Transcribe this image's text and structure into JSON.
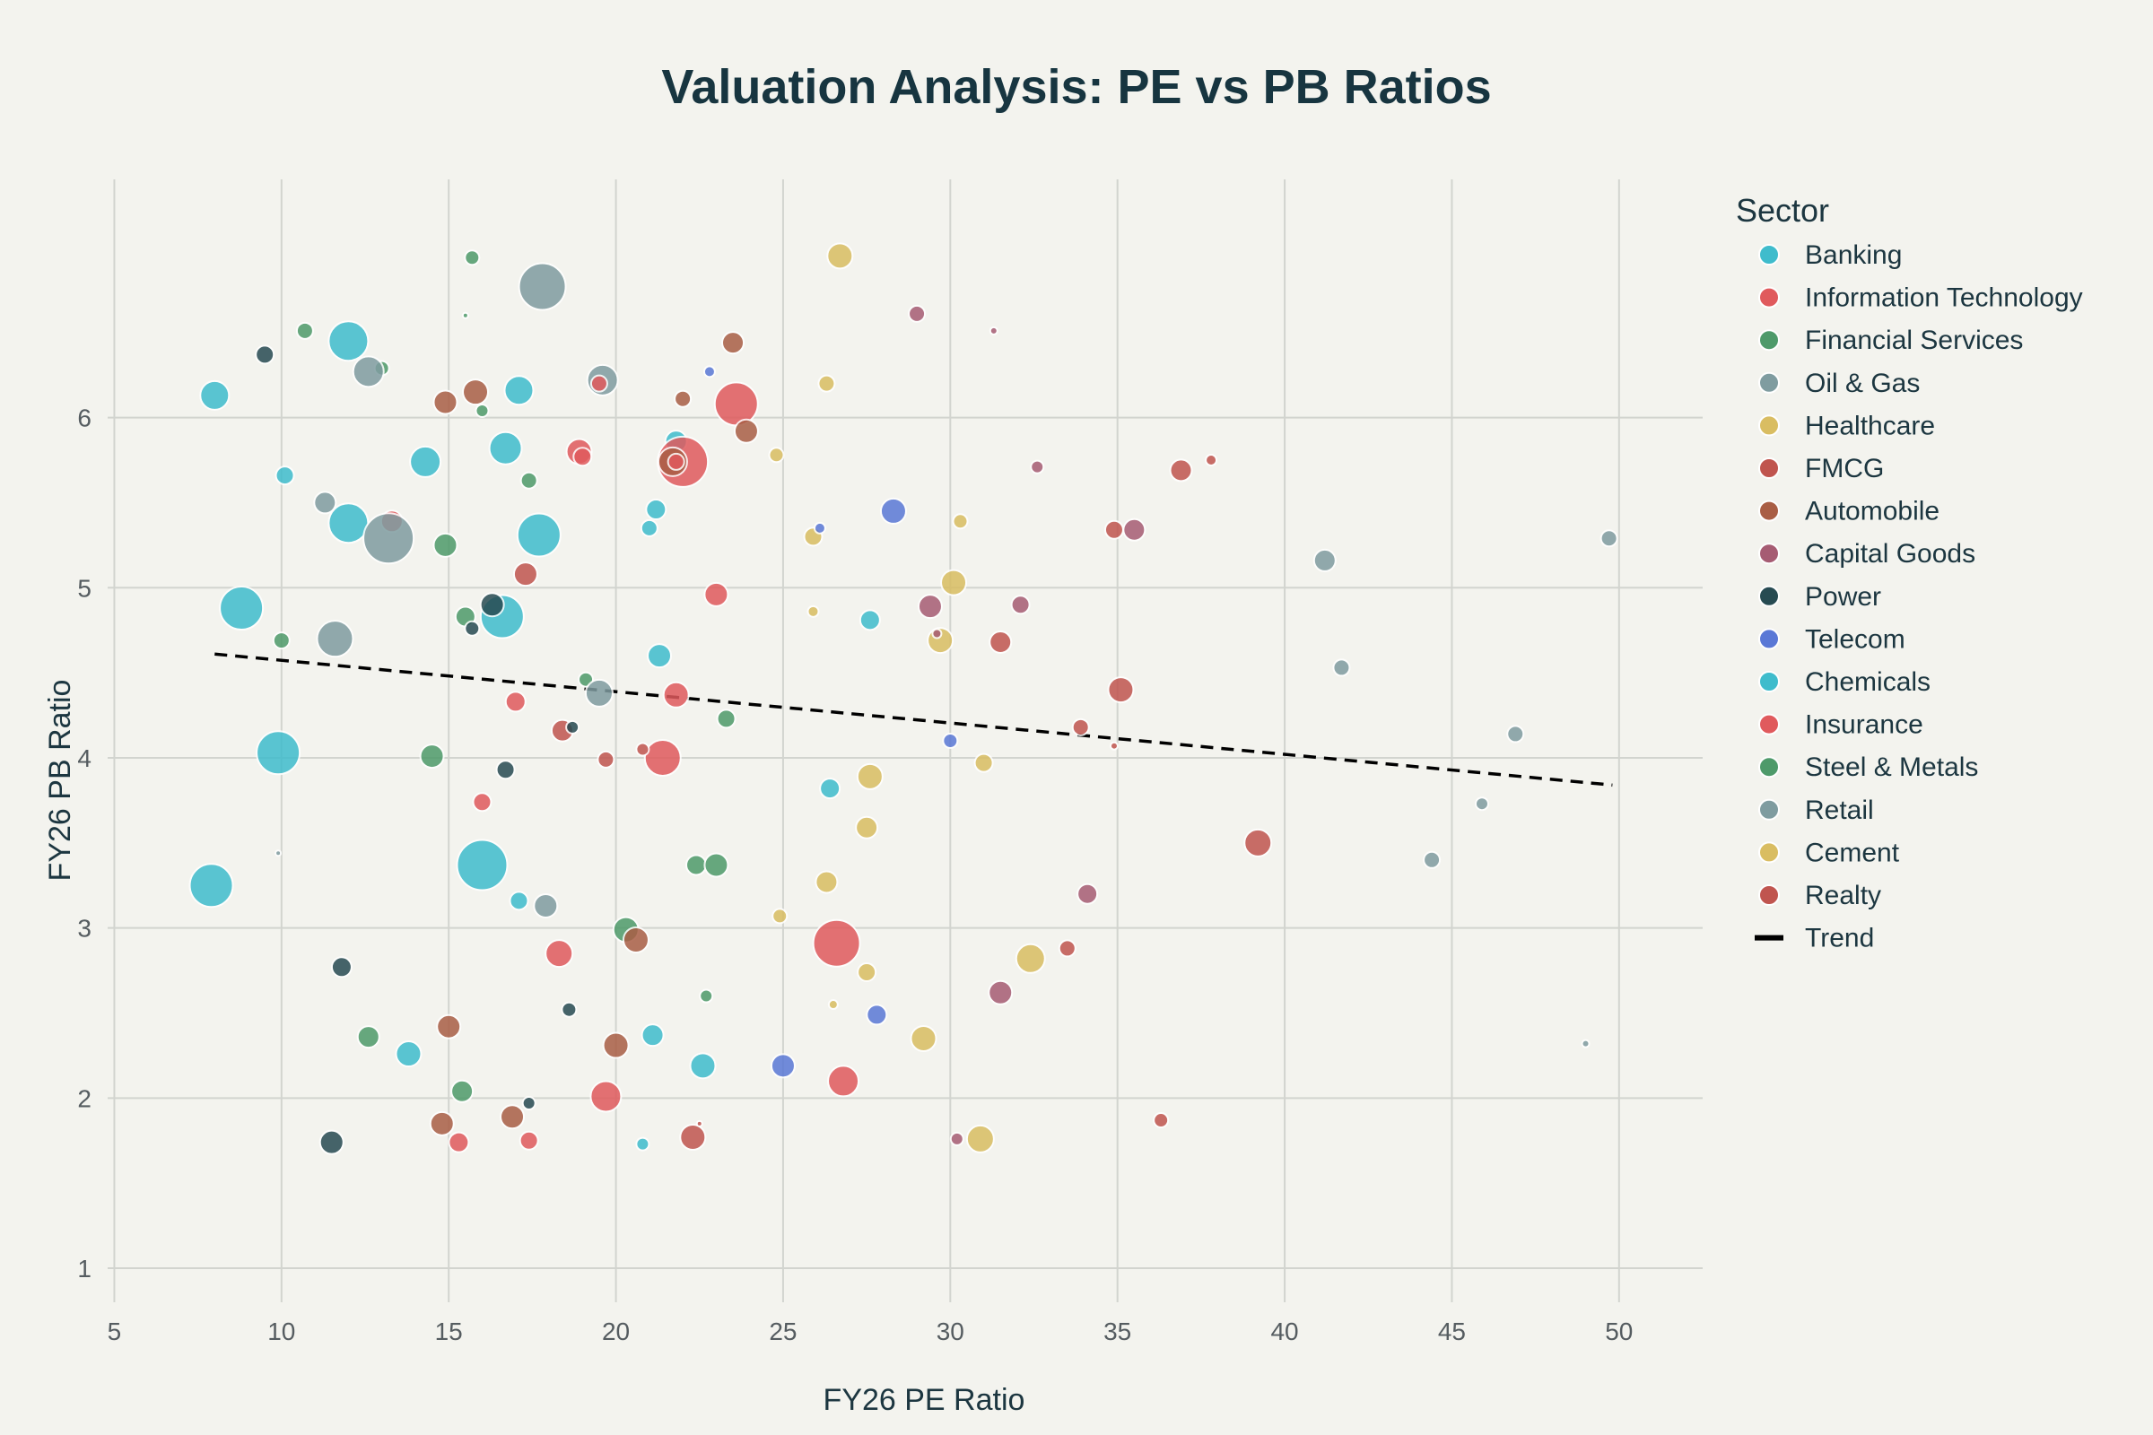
{
  "chart_data": {
    "type": "scatter",
    "title": "Valuation Analysis: PE vs PB Ratios",
    "xlabel": "FY26 PE Ratio",
    "ylabel": "FY26 PB Ratio",
    "xlim": [
      4.8,
      52.5
    ],
    "ylim": [
      0.8,
      7.4
    ],
    "xticks": [
      5,
      10,
      15,
      20,
      25,
      30,
      35,
      40,
      45,
      50
    ],
    "yticks": [
      1,
      2,
      3,
      4,
      5,
      6
    ],
    "grid": true,
    "legend": {
      "title": "Sector",
      "position": "right",
      "trend_label": "Trend"
    },
    "trend": {
      "x": [
        8,
        49.8
      ],
      "y": [
        4.61,
        3.84
      ],
      "color": "#000000",
      "style": "dashed"
    },
    "series": [
      {
        "name": "Banking",
        "color": "#3fbccc",
        "points": [
          [
            8.0,
            6.13,
            16
          ],
          [
            10.1,
            5.66,
            10
          ],
          [
            12.0,
            6.45,
            22
          ],
          [
            12.0,
            5.38,
            22
          ],
          [
            14.3,
            5.74,
            17
          ],
          [
            16.7,
            5.82,
            18
          ],
          [
            17.1,
            6.16,
            16
          ],
          [
            17.7,
            5.31,
            24
          ],
          [
            16.6,
            4.83,
            24
          ],
          [
            8.8,
            4.88,
            24
          ],
          [
            9.9,
            4.03,
            24
          ],
          [
            7.9,
            3.25,
            24
          ],
          [
            16.0,
            3.37,
            28
          ],
          [
            21.0,
            5.35,
            9
          ],
          [
            21.2,
            5.46,
            11
          ],
          [
            21.3,
            4.6,
            13
          ],
          [
            21.8,
            5.86,
            12
          ],
          [
            27.6,
            4.81,
            11
          ],
          [
            26.4,
            3.82,
            11
          ],
          [
            22.6,
            2.19,
            14
          ],
          [
            21.1,
            2.37,
            12
          ],
          [
            17.1,
            3.16,
            10
          ],
          [
            13.8,
            2.26,
            14
          ],
          [
            20.8,
            1.73,
            7
          ]
        ]
      },
      {
        "name": "Information Technology",
        "color": "#e05a5d",
        "points": [
          [
            18.9,
            5.8,
            14
          ],
          [
            22.0,
            5.74,
            28
          ],
          [
            23.6,
            6.08,
            24
          ],
          [
            23.0,
            4.96,
            13
          ],
          [
            21.8,
            4.37,
            14
          ],
          [
            21.4,
            4.0,
            20
          ],
          [
            26.6,
            2.91,
            26
          ],
          [
            26.8,
            2.1,
            17
          ],
          [
            19.7,
            2.01,
            17
          ],
          [
            18.3,
            2.85,
            15
          ],
          [
            16.0,
            3.74,
            10
          ],
          [
            17.0,
            4.33,
            11
          ],
          [
            15.3,
            1.74,
            11
          ],
          [
            17.4,
            1.75,
            10
          ],
          [
            13.3,
            5.39,
            12
          ]
        ]
      },
      {
        "name": "Financial Services",
        "color": "#4e9a6a",
        "points": [
          [
            15.7,
            6.94,
            8
          ],
          [
            10.7,
            6.51,
            9
          ],
          [
            13.0,
            6.29,
            8
          ],
          [
            16.0,
            6.04,
            7
          ],
          [
            17.4,
            5.63,
            9
          ],
          [
            14.9,
            5.25,
            13
          ],
          [
            15.5,
            4.83,
            11
          ],
          [
            10.0,
            4.69,
            9
          ],
          [
            19.1,
            4.46,
            8
          ],
          [
            23.3,
            4.23,
            10
          ],
          [
            14.5,
            4.01,
            13
          ],
          [
            20.3,
            2.99,
            14
          ],
          [
            22.4,
            3.37,
            11
          ],
          [
            23.0,
            3.37,
            13
          ],
          [
            22.7,
            2.6,
            7
          ],
          [
            12.6,
            2.36,
            12
          ],
          [
            15.4,
            2.04,
            12
          ],
          [
            15.5,
            6.6,
            3
          ]
        ]
      },
      {
        "name": "Oil & Gas",
        "color": "#7f9ca0",
        "points": [
          [
            17.8,
            6.77,
            26
          ],
          [
            12.6,
            6.27,
            17
          ],
          [
            19.6,
            6.22,
            17
          ],
          [
            11.3,
            5.5,
            12
          ],
          [
            13.2,
            5.29,
            28
          ],
          [
            11.6,
            4.7,
            20
          ],
          [
            19.5,
            4.38,
            15
          ],
          [
            17.9,
            3.13,
            13
          ],
          [
            41.2,
            5.16,
            12
          ],
          [
            41.7,
            4.53,
            9
          ],
          [
            46.9,
            4.14,
            9
          ],
          [
            45.9,
            3.73,
            7
          ],
          [
            44.4,
            3.4,
            9
          ],
          [
            49.7,
            5.29,
            9
          ],
          [
            49.0,
            2.32,
            4
          ],
          [
            9.9,
            3.44,
            3
          ]
        ]
      },
      {
        "name": "Healthcare",
        "color": "#d9bd62",
        "points": [
          [
            26.7,
            6.95,
            14
          ],
          [
            26.3,
            6.2,
            9
          ],
          [
            24.8,
            5.78,
            8
          ],
          [
            25.9,
            5.3,
            10
          ],
          [
            30.3,
            5.39,
            8
          ],
          [
            30.1,
            5.03,
            14
          ],
          [
            29.7,
            4.69,
            14
          ],
          [
            25.9,
            4.86,
            6
          ],
          [
            31.0,
            3.97,
            10
          ],
          [
            27.6,
            3.89,
            14
          ],
          [
            27.5,
            3.59,
            12
          ],
          [
            26.3,
            3.27,
            12
          ],
          [
            24.9,
            3.07,
            8
          ],
          [
            27.5,
            2.74,
            10
          ],
          [
            32.4,
            2.82,
            16
          ],
          [
            29.2,
            2.35,
            14
          ],
          [
            30.9,
            1.76,
            15
          ],
          [
            26.5,
            2.55,
            5
          ]
        ]
      },
      {
        "name": "FMCG",
        "color": "#c0554f",
        "points": [
          [
            36.9,
            5.69,
            12
          ],
          [
            37.8,
            5.75,
            6
          ],
          [
            34.9,
            5.34,
            10
          ],
          [
            31.5,
            4.68,
            12
          ],
          [
            35.1,
            4.4,
            14
          ],
          [
            33.9,
            4.18,
            9
          ],
          [
            39.2,
            3.5,
            15
          ],
          [
            33.5,
            2.88,
            9
          ],
          [
            36.3,
            1.87,
            8
          ],
          [
            22.3,
            1.77,
            14
          ],
          [
            34.9,
            4.07,
            4
          ],
          [
            19.7,
            3.99,
            9
          ],
          [
            20.8,
            4.05,
            7
          ],
          [
            18.4,
            4.16,
            12
          ],
          [
            17.3,
            5.08,
            13
          ]
        ]
      },
      {
        "name": "Automobile",
        "color": "#a95e45",
        "points": [
          [
            15.8,
            6.15,
            14
          ],
          [
            14.9,
            6.09,
            13
          ],
          [
            23.5,
            6.44,
            12
          ],
          [
            22.0,
            6.11,
            9
          ],
          [
            23.9,
            5.92,
            13
          ],
          [
            21.7,
            5.74,
            16
          ],
          [
            20.6,
            2.93,
            14
          ],
          [
            20.0,
            2.31,
            14
          ],
          [
            15.0,
            2.42,
            13
          ],
          [
            14.8,
            1.85,
            13
          ],
          [
            16.9,
            1.89,
            13
          ]
        ]
      },
      {
        "name": "Capital Goods",
        "color": "#a65c73",
        "points": [
          [
            29.0,
            6.61,
            9
          ],
          [
            31.3,
            6.51,
            4
          ],
          [
            32.6,
            5.71,
            7
          ],
          [
            35.5,
            5.34,
            12
          ],
          [
            29.4,
            4.89,
            13
          ],
          [
            32.1,
            4.9,
            10
          ],
          [
            34.1,
            3.2,
            11
          ],
          [
            31.5,
            2.62,
            13
          ],
          [
            30.2,
            1.76,
            7
          ],
          [
            29.6,
            4.73,
            5
          ]
        ]
      },
      {
        "name": "Power",
        "color": "#274b52",
        "points": [
          [
            9.5,
            6.37,
            10
          ],
          [
            16.3,
            4.9,
            13
          ],
          [
            15.7,
            4.76,
            8
          ],
          [
            18.7,
            4.18,
            7
          ],
          [
            16.7,
            3.93,
            10
          ],
          [
            11.8,
            2.77,
            11
          ],
          [
            18.6,
            2.52,
            8
          ],
          [
            11.5,
            1.74,
            13
          ],
          [
            17.4,
            1.97,
            7
          ]
        ]
      },
      {
        "name": "Telecom",
        "color": "#5a78d6",
        "points": [
          [
            28.3,
            5.45,
            14
          ],
          [
            30.0,
            4.1,
            8
          ],
          [
            26.1,
            5.35,
            6
          ],
          [
            27.8,
            2.49,
            11
          ],
          [
            25.0,
            2.19,
            13
          ],
          [
            22.8,
            6.27,
            6
          ]
        ]
      },
      {
        "name": "Chemicals",
        "color": "#3fbccc",
        "points": []
      },
      {
        "name": "Insurance",
        "color": "#e05a5d",
        "points": [
          [
            19.5,
            6.2,
            9
          ],
          [
            19.0,
            5.77,
            10
          ],
          [
            21.8,
            5.74,
            9
          ]
        ]
      },
      {
        "name": "Steel & Metals",
        "color": "#4e9a6a",
        "points": []
      },
      {
        "name": "Retail",
        "color": "#7f9ca0",
        "points": []
      },
      {
        "name": "Cement",
        "color": "#d9bd62",
        "points": []
      },
      {
        "name": "Realty",
        "color": "#c0554f",
        "points": [
          [
            22.5,
            1.85,
            3
          ]
        ]
      }
    ]
  }
}
